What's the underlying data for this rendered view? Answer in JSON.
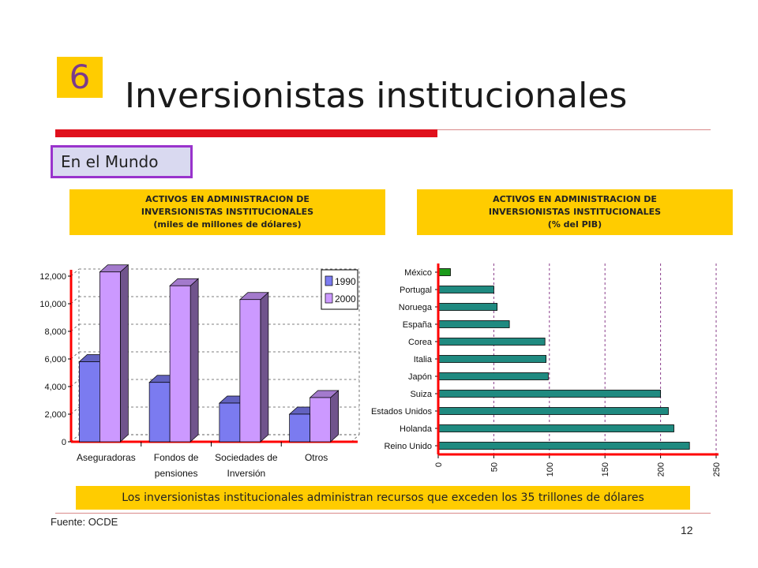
{
  "slide": {
    "number": "6",
    "title": "Inversionistas institucionales",
    "subtitle": "En el Mundo",
    "conclusion": "Los inversionistas institucionales administran recursos que exceden los 35 trillones de dólares",
    "source": "Fuente: OCDE",
    "page_number": "12"
  },
  "colors": {
    "accent_yellow": "#ffcc00",
    "title_bar_red": "#e0101c",
    "subtitle_border": "#9933cc",
    "series_1990": "#7b7bf0",
    "series_2000": "#cc99ff",
    "bar_teal": "#1f8a80",
    "bar_mexico": "#1a9a1a",
    "axis_red": "#ff0000"
  },
  "chart_data": [
    {
      "type": "bar",
      "header": [
        "ACTIVOS EN ADMINISTRACION  DE",
        "INVERSIONISTAS  INSTITUCIONALES",
        "(miles de millones de dólares)"
      ],
      "categories": [
        [
          "Aseguradoras"
        ],
        [
          "Fondos de",
          "pensiones"
        ],
        [
          "Sociedades de",
          "Inversión"
        ],
        [
          "Otros"
        ]
      ],
      "series": [
        {
          "name": "1990",
          "values": [
            5800,
            4300,
            2800,
            2000
          ]
        },
        {
          "name": "2000",
          "values": [
            12300,
            11300,
            10300,
            3200
          ]
        }
      ],
      "yticks": [
        "0",
        "2,000",
        "4,000",
        "6,000",
        "8,000",
        "10,000",
        "12,000"
      ],
      "ylim": [
        0,
        12000
      ],
      "legend": "top-right",
      "style": "3d"
    },
    {
      "type": "bar",
      "orientation": "horizontal",
      "header": [
        "ACTIVOS EN ADMINISTRACION  DE",
        "INVERSIONISTAS  INSTITUCIONALES",
        "(% del PIB)"
      ],
      "categories": [
        "México",
        "Portugal",
        "Noruega",
        "España",
        "Corea",
        "Italia",
        "Japón",
        "Suiza",
        "Estados Unidos",
        "Holanda",
        "Reino Unido"
      ],
      "values": [
        11,
        50,
        53,
        64,
        96,
        97,
        99,
        200,
        207,
        212,
        226
      ],
      "xticks": [
        "0",
        "50",
        "100",
        "150",
        "200",
        "250"
      ],
      "xlim": [
        0,
        250
      ],
      "grid": "vertical dashed"
    }
  ]
}
